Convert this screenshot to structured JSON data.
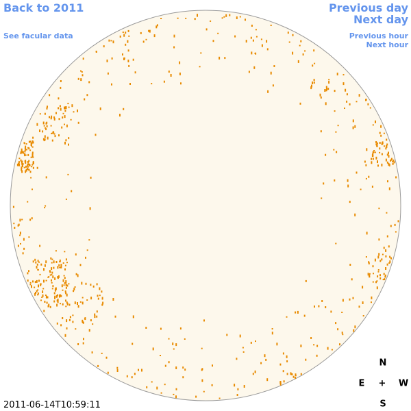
{
  "links": {
    "back": "Back to 2011",
    "facular": "See facular data",
    "previous_day": "Previous day",
    "next_day": "Next day",
    "previous_hour": "Previous hour",
    "next_hour": "Next hour"
  },
  "timestamp": "2011-06-14T10:59:11",
  "compass": {
    "north": "N",
    "east": "E",
    "center": "+",
    "west": "W",
    "south": "S"
  }
}
